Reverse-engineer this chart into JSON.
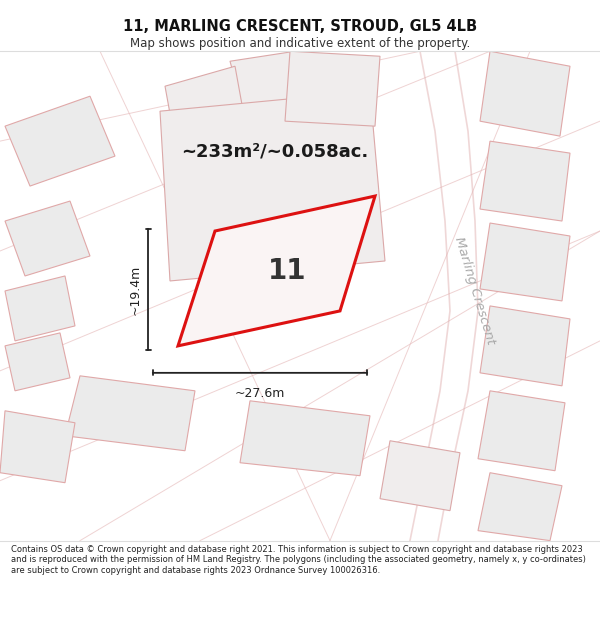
{
  "title": "11, MARLING CRESCENT, STROUD, GL5 4LB",
  "subtitle": "Map shows position and indicative extent of the property.",
  "area_text": "~233m²/~0.058ac.",
  "plot_number": "11",
  "dim_width": "~27.6m",
  "dim_height": "~19.4m",
  "street_label": "Marling Crescent",
  "footer_text": "Contains OS data © Crown copyright and database right 2021. This information is subject to Crown copyright and database rights 2023 and is reproduced with the permission of HM Land Registry. The polygons (including the associated geometry, namely x, y co-ordinates) are subject to Crown copyright and database rights 2023 Ordnance Survey 100026316.",
  "map_bg": "#f7f4f4",
  "plot_fill": "#faf4f4",
  "plot_edge": "#dd1111",
  "bg_fill": "#ebebeb",
  "bg_edge": "#e0a8a8",
  "bg_fill2": "#f0eded",
  "bg_edge2": "#dba8a8",
  "title_color": "#111111",
  "subtitle_color": "#333333",
  "footer_color": "#222222",
  "white": "#ffffff",
  "dim_color": "#222222",
  "street_color": "#aaaaaa",
  "sep_color": "#dddddd"
}
